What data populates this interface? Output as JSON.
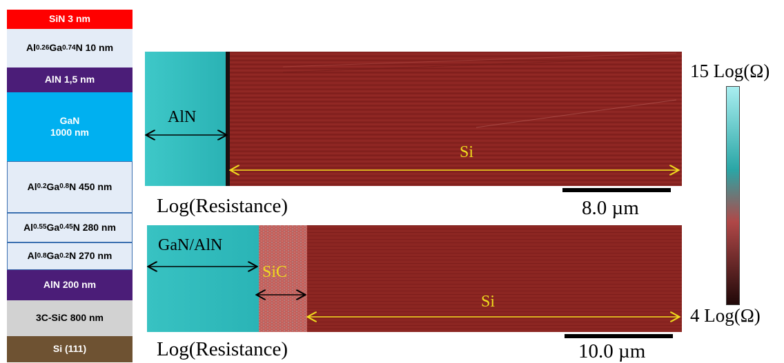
{
  "layer_stack": {
    "layers": [
      {
        "html": "SiN 3 nm",
        "bg": "#ff0000",
        "color": "#ffffff",
        "outlined": false
      },
      {
        "html": "Al<sub>0.26</sub>Ga<sub>0.74</sub>N 10 nm",
        "bg": "#e4ecf7",
        "color": "#000000",
        "outlined": false
      },
      {
        "html": "AlN 1,5 nm",
        "bg": "#4b1d78",
        "color": "#ffffff",
        "outlined": false
      },
      {
        "html": "GaN<br>1000 nm",
        "bg": "#00b0f0",
        "color": "#ffffff",
        "outlined": false
      },
      {
        "html": "Al<sub>0.2</sub>Ga<sub>0.8</sub>N 450 nm",
        "bg": "#e4ecf7",
        "color": "#000000",
        "outlined": true
      },
      {
        "html": "Al<sub>0.55</sub>Ga<sub>0.45</sub>N 280 nm",
        "bg": "#e4ecf7",
        "color": "#000000",
        "outlined": true
      },
      {
        "html": "Al<sub>0.8</sub>Ga<sub>0.2</sub>N 270 nm",
        "bg": "#e4ecf7",
        "color": "#000000",
        "outlined": true
      },
      {
        "html": "AlN 200 nm",
        "bg": "#4b1d78",
        "color": "#ffffff",
        "outlined": false
      },
      {
        "html": "3C-SiC 800 nm",
        "bg": "#d2d2d2",
        "color": "#000000",
        "outlined": false
      },
      {
        "html": "Si (111)",
        "bg": "#6e5232",
        "color": "#ffffff",
        "outlined": false
      }
    ]
  },
  "map_top": {
    "region_labels": [
      "AlN",
      "Si"
    ],
    "caption": "Log(Resistance)",
    "scale_bar": "8.0 µm"
  },
  "map_bottom": {
    "region_labels": [
      "GaN/AlN",
      "SiC",
      "Si"
    ],
    "caption": "Log(Resistance)",
    "scale_bar": "10.0 µm"
  },
  "colorbar": {
    "max_label": "15 Log(Ω)",
    "min_label": "4 Log(Ω)",
    "colors": [
      "#a9eef0",
      "#2aa6a6",
      "#b04848",
      "#200808"
    ]
  },
  "colors": {
    "aln_cyan": "#32bfc0",
    "si_red": "#8a2421",
    "sic_band": "#c0605c",
    "arrow_black": "#000000",
    "arrow_yellow": "#f0dc1e"
  }
}
